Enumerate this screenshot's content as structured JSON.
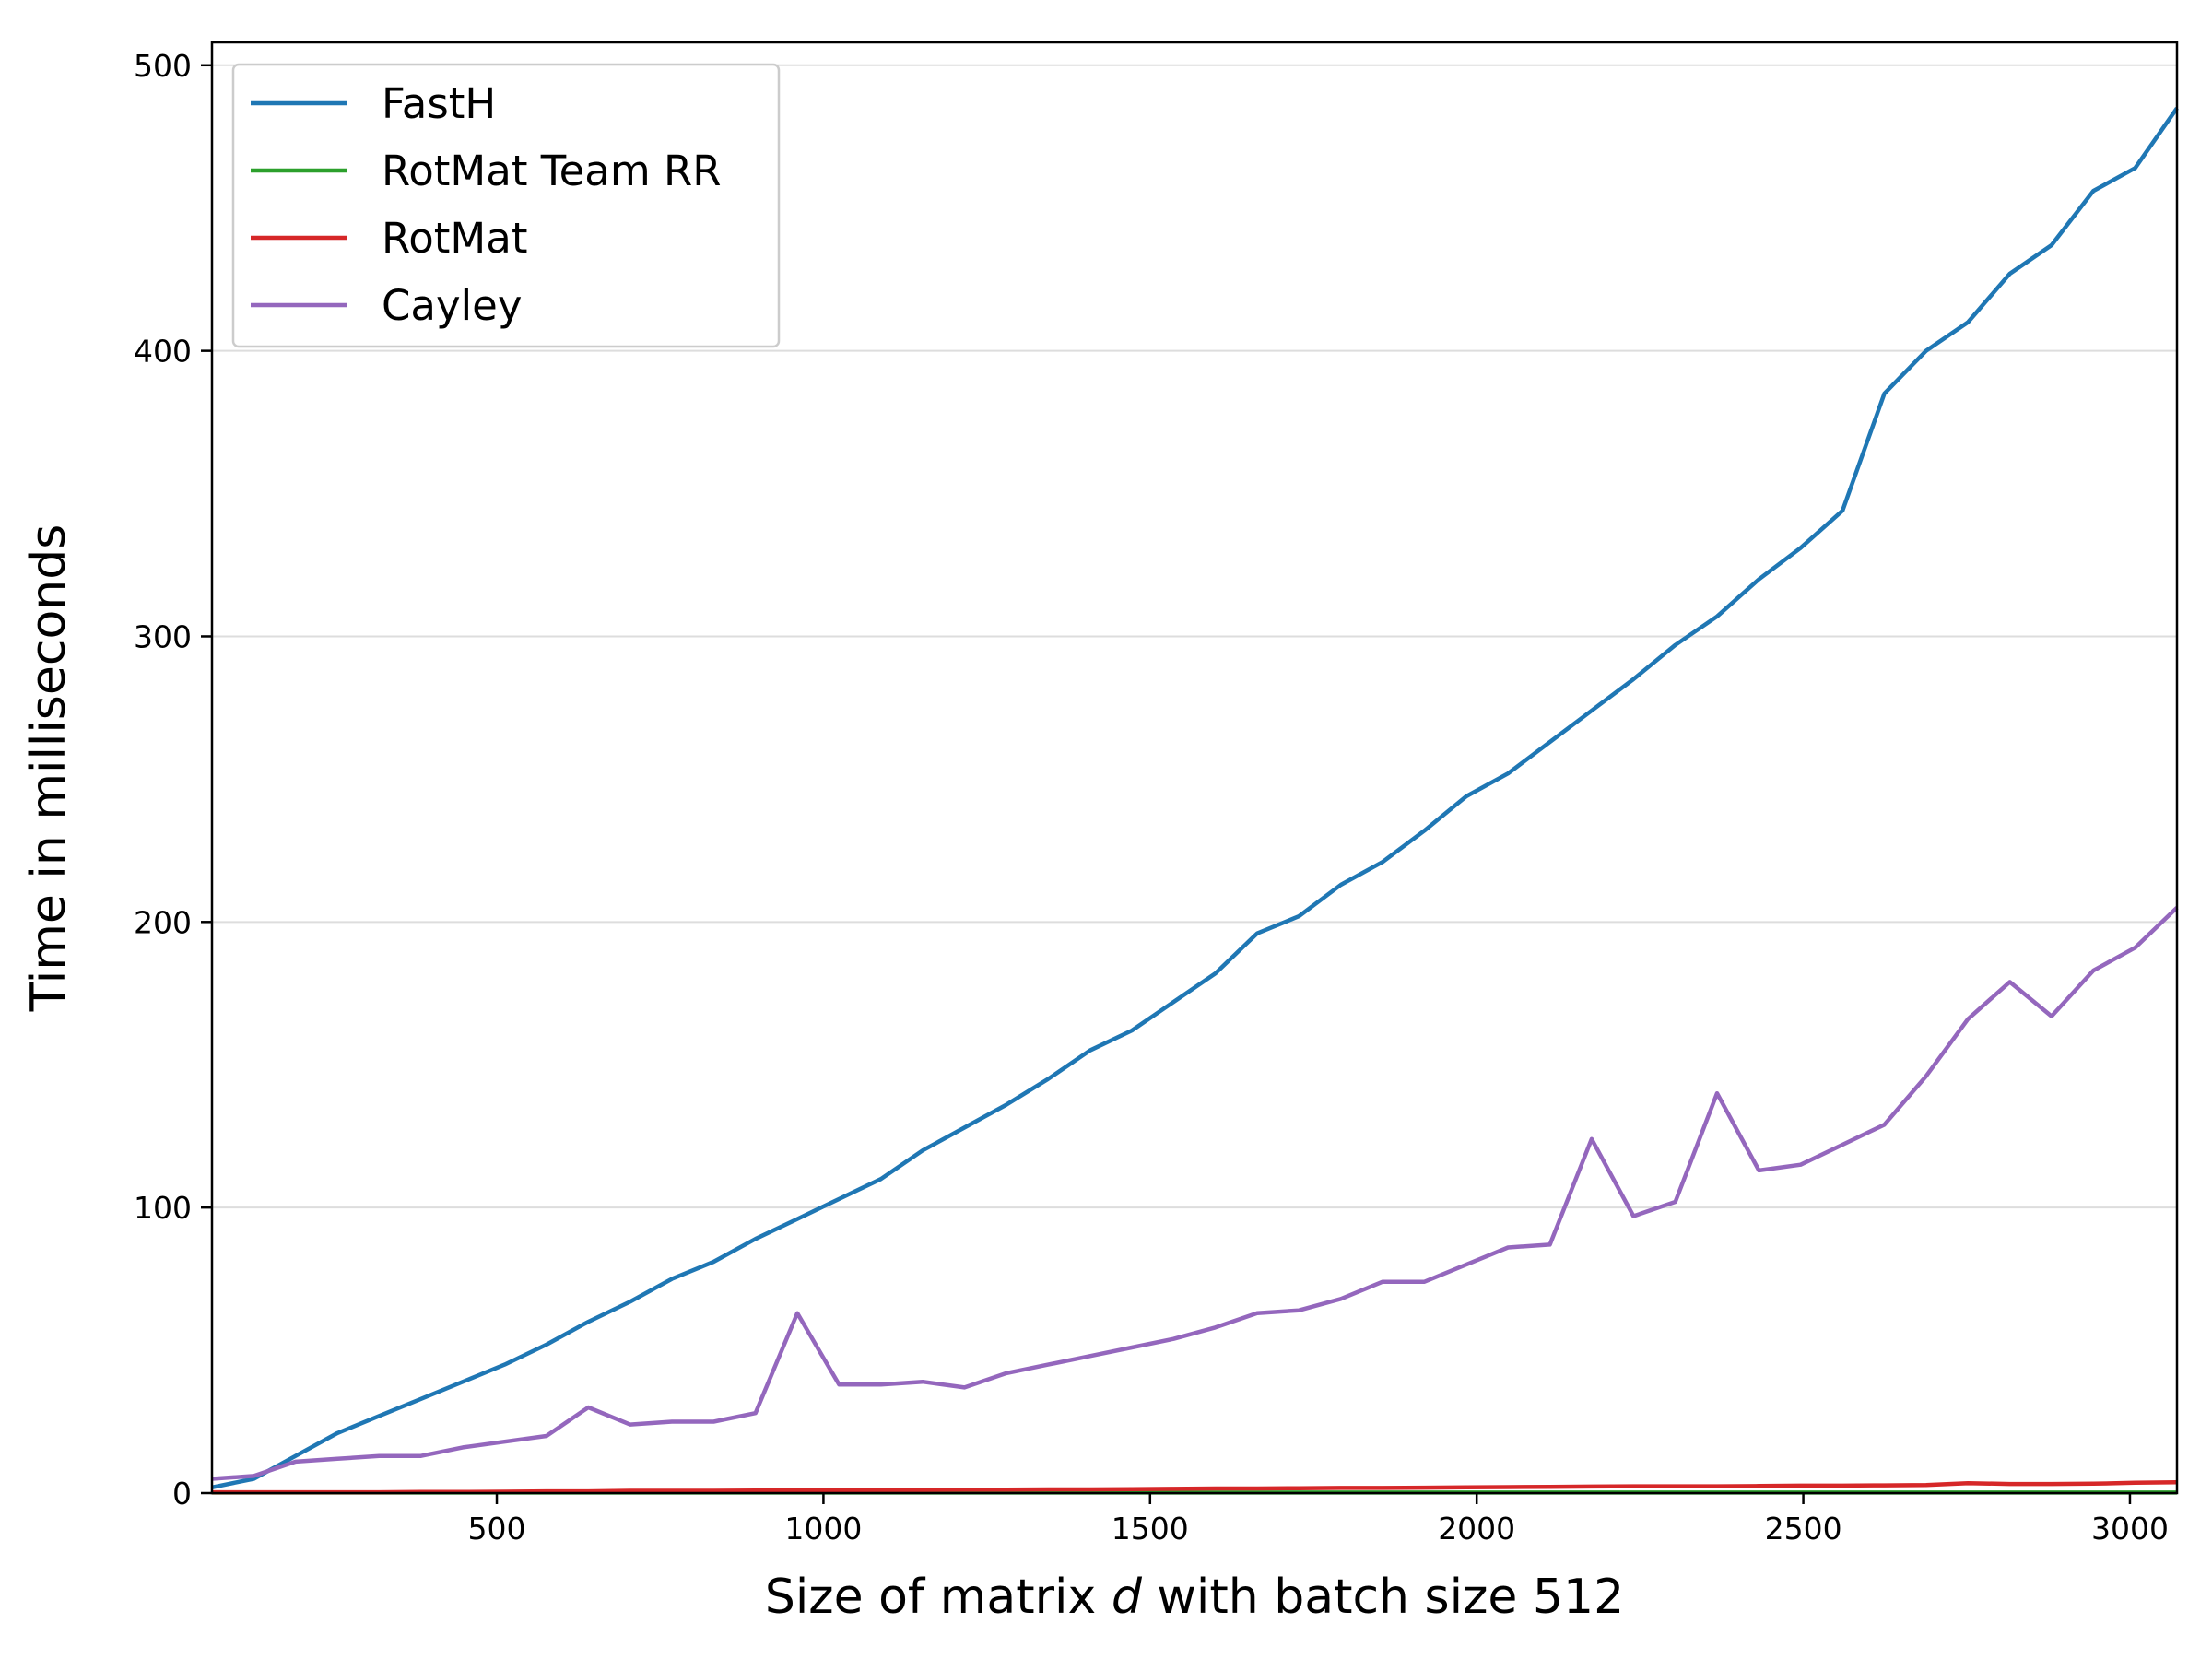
{
  "chart_data": {
    "type": "line",
    "title": "",
    "xlabel_parts": [
      "Size of matrix ",
      "d",
      " with batch size 512"
    ],
    "ylabel": "Time in milliseconds",
    "xlim": [
      64,
      3072
    ],
    "ylim": [
      0,
      508
    ],
    "xticks": [
      500,
      1000,
      1500,
      2000,
      2500,
      3000
    ],
    "yticks": [
      0,
      100,
      200,
      300,
      400,
      500
    ],
    "grid": {
      "y": true,
      "x": false
    },
    "legend_position": "top-left",
    "x": [
      64,
      128,
      192,
      256,
      320,
      384,
      448,
      512,
      576,
      640,
      704,
      768,
      832,
      896,
      960,
      1024,
      1088,
      1152,
      1216,
      1280,
      1344,
      1408,
      1472,
      1536,
      1600,
      1664,
      1728,
      1792,
      1856,
      1920,
      1984,
      2048,
      2112,
      2176,
      2240,
      2304,
      2368,
      2432,
      2496,
      2560,
      2624,
      2688,
      2752,
      2816,
      2880,
      2944,
      3008,
      3072
    ],
    "series": [
      {
        "name": "FastH",
        "color": "#1f77b4",
        "values": [
          2,
          5,
          13,
          21,
          27,
          33,
          39,
          45,
          52,
          60,
          67,
          75,
          81,
          89,
          96,
          103,
          110,
          120,
          128,
          136,
          145,
          155,
          162,
          172,
          182,
          196,
          202,
          213,
          221,
          232,
          244,
          252,
          263,
          274,
          285,
          297,
          307,
          320,
          331,
          344,
          385,
          400,
          410,
          427,
          437,
          456,
          464,
          485
        ]
      },
      {
        "name": "RotMat Team RR",
        "color": "#2ca02c",
        "values": [
          0.2,
          0.2,
          0.2,
          0.2,
          0.2,
          0.2,
          0.2,
          0.2,
          0.2,
          0.2,
          0.2,
          0.2,
          0.2,
          0.2,
          0.2,
          0.2,
          0.2,
          0.2,
          0.2,
          0.2,
          0.2,
          0.2,
          0.2,
          0.2,
          0.2,
          0.2,
          0.2,
          0.2,
          0.2,
          0.2,
          0.2,
          0.2,
          0.2,
          0.2,
          0.2,
          0.2,
          0.2,
          0.2,
          0.2,
          0.2,
          0.2,
          0.2,
          0.2,
          0.2,
          0.2,
          0.2,
          0.2,
          0.2
        ]
      },
      {
        "name": "RotMat",
        "color": "#d62728",
        "values": [
          0.3,
          0.3,
          0.3,
          0.3,
          0.3,
          0.4,
          0.4,
          0.5,
          0.6,
          0.6,
          0.8,
          0.8,
          0.8,
          0.9,
          1.0,
          1.0,
          1.1,
          1.1,
          1.2,
          1.2,
          1.3,
          1.3,
          1.4,
          1.5,
          1.6,
          1.6,
          1.7,
          1.8,
          1.8,
          1.9,
          2.0,
          2.1,
          2.2,
          2.3,
          2.4,
          2.4,
          2.4,
          2.5,
          2.6,
          2.6,
          2.7,
          2.8,
          3.5,
          3.2,
          3.2,
          3.3,
          3.6,
          3.8
        ]
      },
      {
        "name": "Cayley",
        "color": "#9467bd",
        "values": [
          5,
          6,
          11,
          12,
          13,
          13,
          16,
          18,
          20,
          30,
          24,
          25,
          25,
          28,
          63,
          38,
          38,
          39,
          37,
          42,
          45,
          48,
          51,
          54,
          58,
          63,
          64,
          68,
          74,
          74,
          80,
          86,
          87,
          124,
          97,
          102,
          140,
          113,
          115,
          122,
          129,
          146,
          166,
          179,
          167,
          183,
          191,
          205
        ]
      }
    ]
  }
}
